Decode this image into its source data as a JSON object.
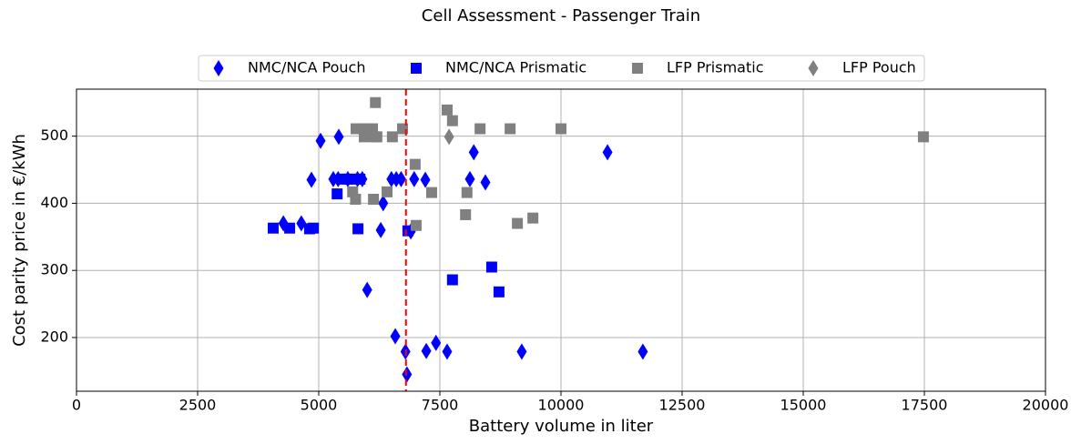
{
  "chart_data": {
    "type": "scatter",
    "title": "Cell Assessment - Passenger Train",
    "x_label": "Battery volume in liter",
    "y_label": "Cost parity price in €/kWh",
    "xlim": [
      0,
      20000
    ],
    "ylim": [
      120,
      570
    ],
    "xticks": [
      0,
      2500,
      5000,
      7500,
      10000,
      12500,
      15000,
      17500,
      20000
    ],
    "yticks": [
      200,
      300,
      400,
      500
    ],
    "grid": true,
    "legend": "upper center",
    "vline": {
      "x": 6800,
      "color": "#ff0000",
      "style": "dashed"
    },
    "series": [
      {
        "name": "NMC/NCA Pouch",
        "color": "#0000ff",
        "marker": "diamond",
        "x": [
          5038,
          5413,
          4850,
          5300,
          5400,
          5600,
          5800,
          5900,
          6500,
          6600,
          6700,
          6970,
          7200,
          8120,
          8440,
          8200,
          10960,
          6330,
          4270,
          4640,
          6280,
          6000,
          6580,
          6790,
          7220,
          7420,
          7650,
          9190,
          11690,
          6820,
          6900
        ],
        "values": [
          493,
          499,
          435,
          436,
          436,
          436,
          436,
          436,
          436,
          436,
          436,
          436,
          435,
          436,
          431,
          476,
          476,
          400,
          370,
          370,
          360,
          271,
          202,
          179,
          180,
          192,
          179,
          179,
          179,
          145,
          358
        ]
      },
      {
        "name": "NMC/NCA Prismatic",
        "color": "#0000ff",
        "marker": "square",
        "x": [
          4060,
          4400,
          4890,
          4810,
          5810,
          5380,
          5470,
          5600,
          5750,
          5850,
          6840,
          7760,
          8570,
          8720
        ],
        "values": [
          363,
          363,
          363,
          362,
          362,
          414,
          436,
          436,
          436,
          436,
          359,
          286,
          305,
          268
        ]
      },
      {
        "name": "LFP Prismatic",
        "color": "#808080",
        "marker": "square",
        "x": [
          6170,
          5770,
          5900,
          6020,
          6110,
          5940,
          6150,
          6200,
          6520,
          6730,
          7650,
          7760,
          8330,
          8950,
          10000,
          17480,
          5700,
          5760,
          6130,
          6410,
          6990,
          7330,
          8060,
          8030,
          7010,
          9100,
          9420
        ],
        "values": [
          550,
          511,
          511,
          511,
          511,
          499,
          499,
          499,
          499,
          511,
          539,
          523,
          511,
          511,
          511,
          499,
          417,
          406,
          406,
          417,
          458,
          416,
          416,
          383,
          367,
          370,
          378
        ]
      },
      {
        "name": "LFP Pouch",
        "color": "#808080",
        "marker": "diamond",
        "x": [
          7690
        ],
        "values": [
          499
        ]
      }
    ]
  }
}
